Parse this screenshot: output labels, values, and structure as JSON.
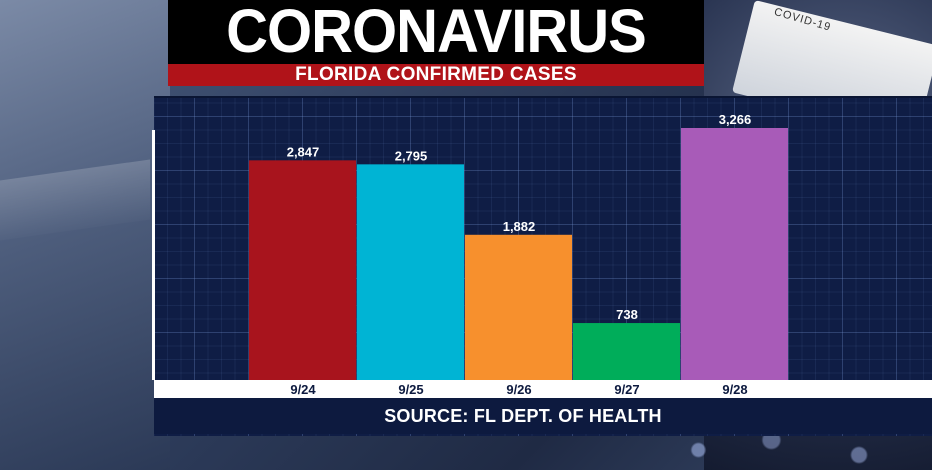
{
  "header": {
    "title": "CORONAVIRUS",
    "subtitle": "FLORIDA CONFIRMED CASES"
  },
  "background": {
    "tube_label": "COVID-19"
  },
  "footer": {
    "source": "SOURCE: FL DEPT. OF HEALTH"
  },
  "chart_data": {
    "type": "bar",
    "title": "FLORIDA CONFIRMED CASES",
    "xlabel": "",
    "ylabel": "",
    "categories": [
      "9/24",
      "9/25",
      "9/26",
      "9/27",
      "9/28"
    ],
    "values": [
      2847,
      2795,
      1882,
      738,
      3266
    ],
    "value_labels": [
      "2,847",
      "2,795",
      "1,882",
      "738",
      "3,266"
    ],
    "colors": [
      "#a8141d",
      "#00b4d4",
      "#f7902d",
      "#00ad5a",
      "#a85bb8"
    ],
    "ylim": [
      0,
      3400
    ],
    "grid": true,
    "legend": "none"
  }
}
